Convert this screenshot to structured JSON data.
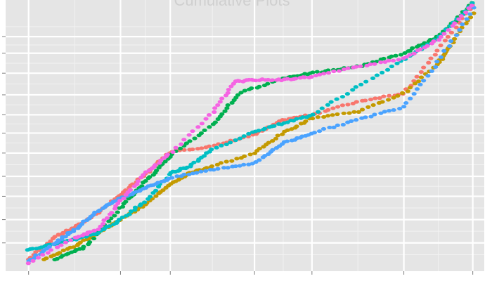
{
  "chart_data": {
    "type": "scatter",
    "title": "Cumulative Plots",
    "xlabel": "",
    "ylabel": "",
    "xlim": [
      -0.6,
      11.9
    ],
    "ylim": [
      -0.5,
      15.8
    ],
    "grid": true,
    "x_major_ticks": [
      0,
      2.4,
      3.7,
      5.9,
      7.4,
      9.8,
      11.6
    ],
    "x_minor_ticks": [
      1.2,
      3.05,
      4.8,
      6.65,
      8.6,
      10.7
    ],
    "y_major_ticks": [
      1.2,
      2.6,
      4.0,
      5.2,
      6.6,
      7.8,
      8.9,
      10.1,
      11.4,
      12.6,
      13.6
    ],
    "y_minor_ticks": [
      0.5,
      1.9,
      3.3,
      4.6,
      5.9,
      7.2,
      8.35,
      9.5,
      10.75,
      12.0,
      13.1,
      14.2
    ],
    "point_count_per_series": 140,
    "series": [
      {
        "name": "red",
        "color": "#f8766d",
        "x": [
          0,
          0.7,
          1.2,
          1.8,
          2.4,
          3.05,
          3.7,
          4.8,
          5.9,
          6.65,
          7.4,
          8.6,
          9.8,
          10.7,
          11.6
        ],
        "y": [
          0.2,
          1.6,
          2.1,
          3.0,
          4.1,
          5.3,
          6.7,
          7.0,
          7.7,
          8.6,
          8.9,
          9.7,
          10.2,
          12.8,
          15.5
        ]
      },
      {
        "name": "olive",
        "color": "#c49a00",
        "x": [
          0.4,
          1.2,
          1.8,
          2.4,
          3.05,
          3.7,
          4.2,
          4.8,
          5.9,
          6.65,
          7.4,
          8.6,
          9.8,
          10.7,
          11.0,
          11.6
        ],
        "y": [
          0.2,
          1.0,
          1.8,
          2.6,
          3.5,
          4.7,
          5.4,
          5.8,
          6.6,
          7.8,
          8.7,
          9.1,
          10.2,
          12.0,
          13.0,
          15.0
        ]
      },
      {
        "name": "green",
        "color": "#00b050",
        "x": [
          0.7,
          1.5,
          2.4,
          3.05,
          3.7,
          4.8,
          5.5,
          6.65,
          7.4,
          8.6,
          9.8,
          10.7,
          11.6
        ],
        "y": [
          0.2,
          1.0,
          3.3,
          4.9,
          6.4,
          8.3,
          10.2,
          11.1,
          11.4,
          11.8,
          12.6,
          13.6,
          15.6
        ]
      },
      {
        "name": "teal",
        "color": "#00bfc4",
        "x": [
          0,
          0.6,
          1.2,
          1.8,
          2.4,
          3.05,
          3.7,
          4.2,
          4.8,
          5.9,
          6.65,
          7.4,
          8.6,
          9.8,
          10.7,
          11.6
        ],
        "y": [
          0.8,
          1.1,
          1.4,
          1.8,
          2.6,
          3.7,
          5.4,
          5.8,
          6.8,
          7.9,
          8.4,
          8.9,
          10.6,
          12.2,
          13.5,
          15.6
        ]
      },
      {
        "name": "blue",
        "color": "#4aa3ff",
        "x": [
          0,
          0.7,
          1.2,
          1.8,
          2.4,
          3.05,
          3.7,
          4.8,
          5.9,
          6.65,
          7.4,
          8.6,
          9.8,
          10.7,
          11.6
        ],
        "y": [
          0.1,
          1.2,
          2.0,
          3.1,
          3.9,
          4.5,
          5.1,
          5.6,
          6.0,
          7.2,
          7.8,
          8.6,
          9.4,
          12.1,
          15.3
        ]
      },
      {
        "name": "pink",
        "color": "#f564e3",
        "x": [
          0,
          1.2,
          1.8,
          2.4,
          3.05,
          3.7,
          4.8,
          5.4,
          5.9,
          6.65,
          7.4,
          8.6,
          9.8,
          10.7,
          11.6
        ],
        "y": [
          0.0,
          1.5,
          2.0,
          3.7,
          5.4,
          6.6,
          9.0,
          10.9,
          11.0,
          11.0,
          11.2,
          11.8,
          12.3,
          13.4,
          15.5
        ]
      }
    ]
  }
}
